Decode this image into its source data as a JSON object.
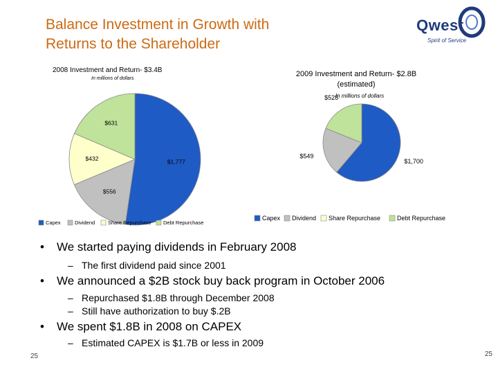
{
  "slide": {
    "title_line1": "Balance Investment in Growth with",
    "title_line2": "Returns to the Shareholder",
    "logo_word": "Qwest",
    "logo_tagline": "Spirit of Service",
    "page_number": "25",
    "bullets": [
      {
        "text": "We started paying dividends in February 2008",
        "subs": [
          "The first dividend paid since 2001"
        ]
      },
      {
        "text": "We announced a $2B stock buy back program in October 2006",
        "subs": [
          "Repurchased $1.8B through December 2008",
          "Still have authorization to buy $.2B"
        ]
      },
      {
        "text": "We spent $1.8B in 2008 on CAPEX",
        "subs": [
          "Estimated CAPEX is $1.7B or less in 2009"
        ]
      }
    ]
  },
  "colors": {
    "title": "#cc6a12",
    "capex": "#1f5bc4",
    "dividend": "#c0c0c0",
    "share_repurchase": "#ffffcc",
    "debt_repurchase": "#bfe39a"
  },
  "chart_data": [
    {
      "type": "pie",
      "title": "2008 Investment and Return- $3.4B",
      "subtitle": "In millions of dollars",
      "categories": [
        "Capex",
        "Dividend",
        "Share Repurchase",
        "Debt Repurchase"
      ],
      "values": [
        1777,
        556,
        432,
        631
      ],
      "labels": [
        "$1,777",
        "$556",
        "$432",
        "$631"
      ],
      "legend": [
        "Capex",
        "Dividend",
        "Share Repurchase",
        "Debt Repurchase"
      ],
      "legend_position": "bottom"
    },
    {
      "type": "pie",
      "title": "2009 Investment and Return- $2.8B (estimated)",
      "title_line1": "2009 Investment and Return- $2.8B",
      "title_line2": "(estimated)",
      "subtitle": "In millions of dollars",
      "categories": [
        "Capex",
        "Dividend",
        "Debt Repurchase"
      ],
      "values": [
        1700,
        549,
        528
      ],
      "labels": [
        "$1,700",
        "$549",
        "$528"
      ],
      "legend": [
        "Capex",
        "Dividend",
        "Share Repurchase",
        "Debt Repurchase"
      ],
      "legend_position": "bottom"
    }
  ]
}
